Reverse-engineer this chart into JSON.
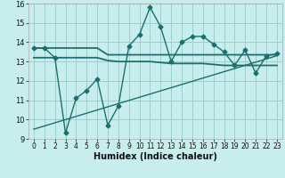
{
  "xlabel": "Humidex (Indice chaleur)",
  "ylabel": "",
  "background_color": "#c8eded",
  "grid_color": "#9ecece",
  "line_color": "#1a7070",
  "xlim": [
    -0.5,
    23.5
  ],
  "ylim": [
    9,
    16
  ],
  "yticks": [
    9,
    10,
    11,
    12,
    13,
    14,
    15,
    16
  ],
  "xticks": [
    0,
    1,
    2,
    3,
    4,
    5,
    6,
    7,
    8,
    9,
    10,
    11,
    12,
    13,
    14,
    15,
    16,
    17,
    18,
    19,
    20,
    21,
    22,
    23
  ],
  "series": [
    {
      "x": [
        0,
        1,
        2,
        3,
        4,
        5,
        6,
        7,
        8,
        9,
        10,
        11,
        12,
        13,
        14,
        15,
        16,
        17,
        18,
        19,
        20,
        21,
        22,
        23
      ],
      "y": [
        13.7,
        13.7,
        13.2,
        9.3,
        11.1,
        11.5,
        12.1,
        9.7,
        10.7,
        13.8,
        14.4,
        15.8,
        14.8,
        13.0,
        14.0,
        14.3,
        14.3,
        13.9,
        13.5,
        12.8,
        13.6,
        12.4,
        13.3,
        13.4
      ],
      "marker": "D",
      "markersize": 2.5,
      "linewidth": 1.0,
      "has_marker": true
    },
    {
      "x": [
        0,
        1,
        2,
        3,
        4,
        5,
        6,
        7,
        8,
        9,
        10,
        11,
        12,
        13,
        14,
        15,
        16,
        17,
        18,
        19,
        20,
        21,
        22,
        23
      ],
      "y": [
        13.7,
        13.7,
        13.7,
        13.7,
        13.7,
        13.7,
        13.7,
        13.35,
        13.35,
        13.35,
        13.35,
        13.35,
        13.35,
        13.35,
        13.35,
        13.35,
        13.35,
        13.35,
        13.35,
        13.35,
        13.35,
        13.35,
        13.35,
        13.35
      ],
      "marker": null,
      "markersize": 0,
      "linewidth": 1.3,
      "has_marker": false
    },
    {
      "x": [
        0,
        1,
        2,
        3,
        4,
        5,
        6,
        7,
        8,
        9,
        10,
        11,
        12,
        13,
        14,
        15,
        16,
        17,
        18,
        19,
        20,
        21,
        22,
        23
      ],
      "y": [
        13.2,
        13.2,
        13.2,
        13.2,
        13.2,
        13.2,
        13.2,
        13.05,
        13.0,
        13.0,
        13.0,
        13.0,
        12.95,
        12.9,
        12.9,
        12.9,
        12.9,
        12.85,
        12.8,
        12.8,
        12.8,
        12.8,
        12.8,
        12.8
      ],
      "marker": null,
      "markersize": 0,
      "linewidth": 1.3,
      "has_marker": false
    },
    {
      "x": [
        0,
        23
      ],
      "y": [
        9.5,
        13.3
      ],
      "marker": null,
      "markersize": 0,
      "linewidth": 1.0,
      "has_marker": false
    }
  ]
}
